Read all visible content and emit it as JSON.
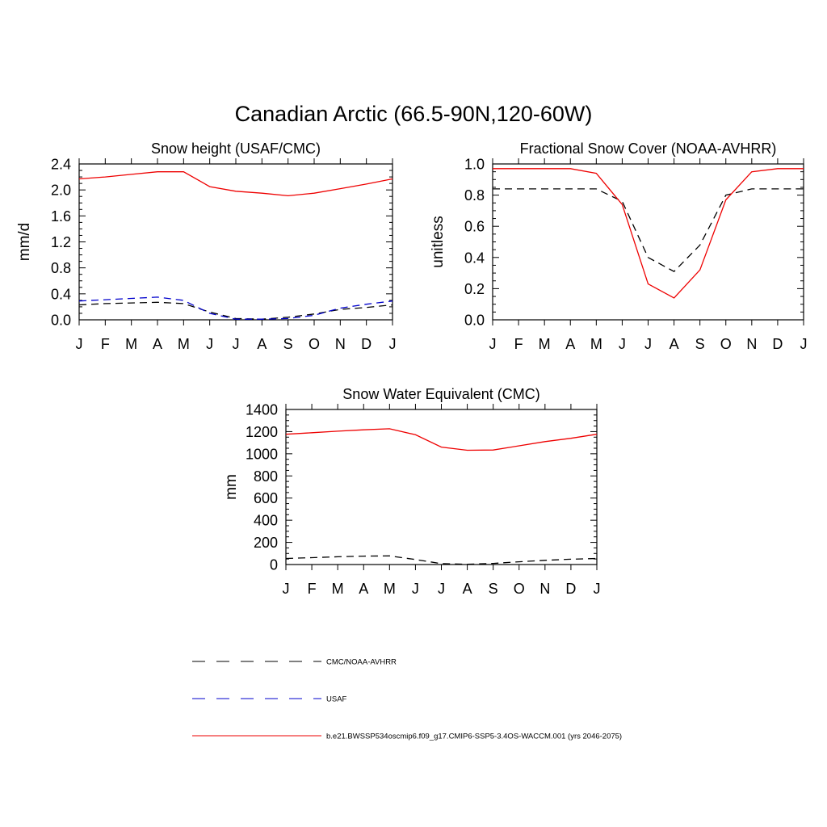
{
  "figure": {
    "title": "Canadian Arctic (66.5-90N,120-60W)"
  },
  "legend": [
    {
      "label": "CMC/NOAA-AVHRR",
      "color": "#000000",
      "dash": "dashed"
    },
    {
      "label": "USAF",
      "color": "#0000cc",
      "dash": "dashed"
    },
    {
      "label": "b.e21.BWSSP534oscmip6.f09_g17.CMIP6-SSP5-3.4OS-WACCM.001 (yrs 2046-2075)",
      "color": "#ee0000",
      "dash": "solid"
    }
  ],
  "chart_data": [
    {
      "type": "line",
      "title": "Snow height (USAF/CMC)",
      "xlabel": "",
      "ylabel": "mm/d",
      "categories": [
        "J",
        "F",
        "M",
        "A",
        "M",
        "J",
        "J",
        "A",
        "S",
        "O",
        "N",
        "D",
        "J"
      ],
      "ylim": [
        0,
        2.4
      ],
      "yticks": [
        "0.0",
        "0.4",
        "0.8",
        "1.2",
        "1.6",
        "2.0",
        "2.4"
      ],
      "series": [
        {
          "name": "CMC/NOAA-AVHRR",
          "color": "#000000",
          "dash": "dashed",
          "values": [
            0.23,
            0.25,
            0.26,
            0.27,
            0.25,
            0.12,
            0.02,
            0.01,
            0.04,
            0.09,
            0.16,
            0.19,
            0.23
          ]
        },
        {
          "name": "USAF",
          "color": "#0000cc",
          "dash": "dashed",
          "values": [
            0.29,
            0.31,
            0.33,
            0.35,
            0.3,
            0.1,
            0.01,
            0.01,
            0.02,
            0.07,
            0.18,
            0.24,
            0.29
          ]
        },
        {
          "name": "b.e21.BWSSP534oscmip6.f09_g17.CMIP6-SSP5-3.4OS-WACCM.001 (yrs 2046-2075)",
          "color": "#ee0000",
          "dash": "solid",
          "values": [
            2.17,
            2.2,
            2.24,
            2.28,
            2.28,
            2.05,
            1.98,
            1.95,
            1.91,
            1.95,
            2.02,
            2.09,
            2.17
          ]
        }
      ]
    },
    {
      "type": "line",
      "title": "Fractional Snow Cover (NOAA-AVHRR)",
      "xlabel": "",
      "ylabel": "unitless",
      "categories": [
        "J",
        "F",
        "M",
        "A",
        "M",
        "J",
        "J",
        "A",
        "S",
        "O",
        "N",
        "D",
        "J"
      ],
      "ylim": [
        0,
        1.0
      ],
      "yticks": [
        "0.0",
        "0.2",
        "0.4",
        "0.6",
        "0.8",
        "1.0"
      ],
      "series": [
        {
          "name": "CMC/NOAA-AVHRR",
          "color": "#000000",
          "dash": "dashed",
          "values": [
            0.84,
            0.84,
            0.84,
            0.84,
            0.84,
            0.76,
            0.4,
            0.31,
            0.48,
            0.8,
            0.84,
            0.84,
            0.84
          ]
        },
        {
          "name": "b.e21.BWSSP534oscmip6.f09_g17.CMIP6-SSP5-3.4OS-WACCM.001 (yrs 2046-2075)",
          "color": "#ee0000",
          "dash": "solid",
          "values": [
            0.97,
            0.97,
            0.97,
            0.97,
            0.94,
            0.74,
            0.23,
            0.14,
            0.32,
            0.77,
            0.95,
            0.97,
            0.97
          ]
        }
      ]
    },
    {
      "type": "line",
      "title": "Snow Water Equivalent (CMC)",
      "xlabel": "",
      "ylabel": "mm",
      "categories": [
        "J",
        "F",
        "M",
        "A",
        "M",
        "J",
        "J",
        "A",
        "S",
        "O",
        "N",
        "D",
        "J"
      ],
      "ylim": [
        0,
        1400
      ],
      "yticks": [
        "0",
        "200",
        "400",
        "600",
        "800",
        "1000",
        "1200",
        "1400"
      ],
      "series": [
        {
          "name": "CMC/NOAA-AVHRR",
          "color": "#000000",
          "dash": "dashed",
          "values": [
            55,
            62,
            70,
            76,
            78,
            45,
            8,
            2,
            10,
            25,
            38,
            48,
            55
          ]
        },
        {
          "name": "b.e21.BWSSP534oscmip6.f09_g17.CMIP6-SSP5-3.4OS-WACCM.001 (yrs 2046-2075)",
          "color": "#ee0000",
          "dash": "solid",
          "values": [
            1176,
            1190,
            1204,
            1216,
            1226,
            1172,
            1060,
            1032,
            1034,
            1072,
            1110,
            1140,
            1176
          ]
        }
      ]
    }
  ]
}
